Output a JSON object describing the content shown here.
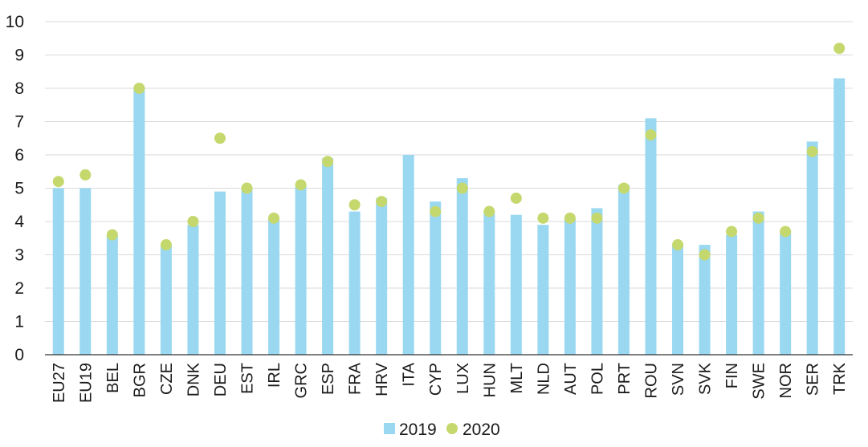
{
  "chart_data": {
    "type": "bar",
    "title": "",
    "xlabel": "",
    "ylabel": "",
    "ylim": [
      0,
      10
    ],
    "yticks": [
      0,
      1,
      2,
      3,
      4,
      5,
      6,
      7,
      8,
      9,
      10
    ],
    "grid": true,
    "legend_position": "bottom-center",
    "categories": [
      "EU27",
      "EU19",
      "BEL",
      "BGR",
      "CZE",
      "DNK",
      "DEU",
      "EST",
      "IRL",
      "GRC",
      "ESP",
      "FRA",
      "HRV",
      "ITA",
      "CYP",
      "LUX",
      "HUN",
      "MLT",
      "NLD",
      "AUT",
      "POL",
      "PRT",
      "ROU",
      "SVN",
      "SVK",
      "FIN",
      "SWE",
      "NOR",
      "SER",
      "TRK"
    ],
    "series": [
      {
        "name": "2019",
        "kind": "bar",
        "color": "#9ad8f2",
        "values": [
          5.0,
          5.0,
          3.6,
          8.0,
          3.3,
          3.9,
          4.9,
          5.0,
          4.1,
          5.1,
          5.9,
          4.3,
          4.7,
          6.0,
          4.6,
          5.3,
          4.3,
          4.2,
          3.9,
          4.1,
          4.4,
          5.1,
          7.1,
          3.3,
          3.3,
          3.6,
          4.3,
          3.7,
          6.4,
          8.3
        ]
      },
      {
        "name": "2020",
        "kind": "dot",
        "color": "#c5d86d",
        "values": [
          5.2,
          5.4,
          3.6,
          8.0,
          3.3,
          4.0,
          6.5,
          5.0,
          4.1,
          5.1,
          5.8,
          4.5,
          4.6,
          null,
          4.3,
          5.0,
          4.3,
          4.7,
          4.1,
          4.1,
          4.1,
          5.0,
          6.6,
          3.3,
          3.0,
          3.7,
          4.1,
          3.7,
          6.1,
          9.2
        ]
      }
    ]
  }
}
